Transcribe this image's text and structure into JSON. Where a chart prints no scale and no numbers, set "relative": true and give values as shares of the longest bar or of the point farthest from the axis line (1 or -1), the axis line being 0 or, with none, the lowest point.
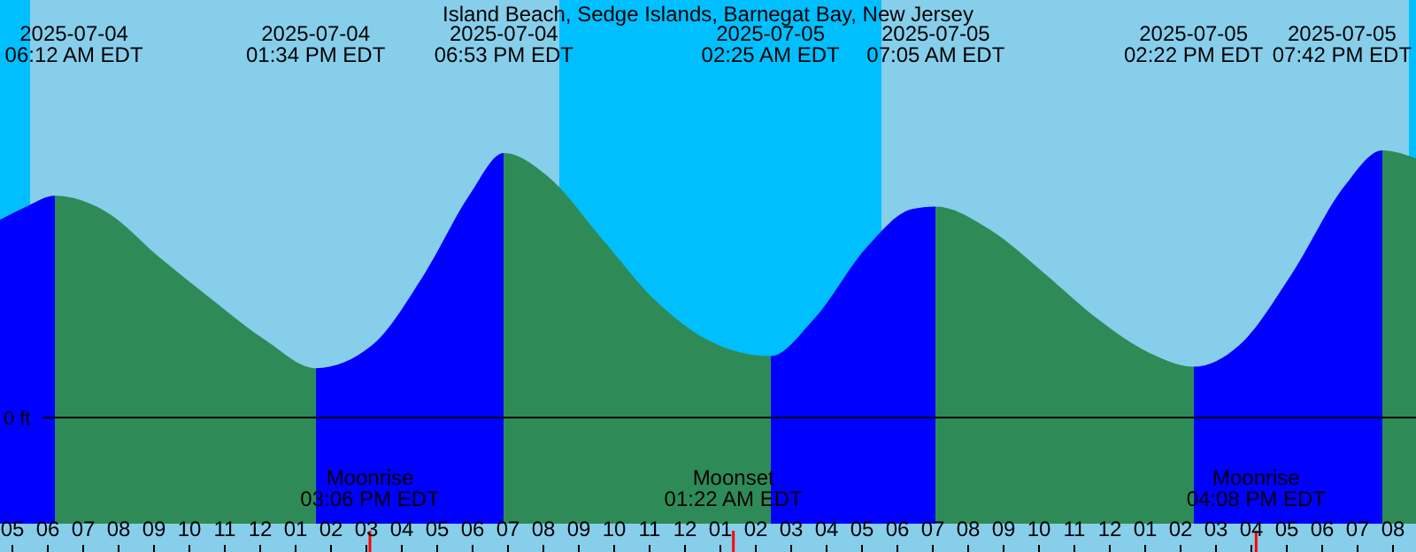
{
  "chart_data": {
    "type": "area",
    "title": "Island Beach, Sedge Islands, Barnegat Bay, New Jersey",
    "relative": true,
    "xlim": [
      "2025-07-04T04:39",
      "2025-07-05T20:39"
    ],
    "xticks": [
      {
        "value": "2025-07-04T05:00",
        "label": "05"
      },
      {
        "value": "2025-07-04T06:00",
        "label": "06"
      },
      {
        "value": "2025-07-04T07:00",
        "label": "07"
      },
      {
        "value": "2025-07-04T08:00",
        "label": "08"
      },
      {
        "value": "2025-07-04T09:00",
        "label": "09"
      },
      {
        "value": "2025-07-04T10:00",
        "label": "10"
      },
      {
        "value": "2025-07-04T11:00",
        "label": "11"
      },
      {
        "value": "2025-07-04T12:00",
        "label": "12"
      },
      {
        "value": "2025-07-04T13:00",
        "label": "01"
      },
      {
        "value": "2025-07-04T14:00",
        "label": "02"
      },
      {
        "value": "2025-07-04T15:00",
        "label": "03"
      },
      {
        "value": "2025-07-04T16:00",
        "label": "04"
      },
      {
        "value": "2025-07-04T17:00",
        "label": "05"
      },
      {
        "value": "2025-07-04T18:00",
        "label": "06"
      },
      {
        "value": "2025-07-04T19:00",
        "label": "07"
      },
      {
        "value": "2025-07-04T20:00",
        "label": "08"
      },
      {
        "value": "2025-07-04T21:00",
        "label": "09"
      },
      {
        "value": "2025-07-04T22:00",
        "label": "10"
      },
      {
        "value": "2025-07-04T23:00",
        "label": "11"
      },
      {
        "value": "2025-07-05T00:00",
        "label": "12"
      },
      {
        "value": "2025-07-05T01:00",
        "label": "01"
      },
      {
        "value": "2025-07-05T02:00",
        "label": "02"
      },
      {
        "value": "2025-07-05T03:00",
        "label": "03"
      },
      {
        "value": "2025-07-05T04:00",
        "label": "04"
      },
      {
        "value": "2025-07-05T05:00",
        "label": "05"
      },
      {
        "value": "2025-07-05T06:00",
        "label": "06"
      },
      {
        "value": "2025-07-05T07:00",
        "label": "07"
      },
      {
        "value": "2025-07-05T08:00",
        "label": "08"
      },
      {
        "value": "2025-07-05T09:00",
        "label": "09"
      },
      {
        "value": "2025-07-05T10:00",
        "label": "10"
      },
      {
        "value": "2025-07-05T11:00",
        "label": "11"
      },
      {
        "value": "2025-07-05T12:00",
        "label": "12"
      },
      {
        "value": "2025-07-05T13:00",
        "label": "01"
      },
      {
        "value": "2025-07-05T14:00",
        "label": "02"
      },
      {
        "value": "2025-07-05T15:00",
        "label": "03"
      },
      {
        "value": "2025-07-05T16:00",
        "label": "04"
      },
      {
        "value": "2025-07-05T17:00",
        "label": "05"
      },
      {
        "value": "2025-07-05T18:00",
        "label": "06"
      },
      {
        "value": "2025-07-05T19:00",
        "label": "07"
      },
      {
        "value": "2025-07-05T20:00",
        "label": "08"
      }
    ],
    "x": [
      "2025-07-04T04:39",
      "2025-07-04T05:24",
      "2025-07-04T06:12",
      "2025-07-04T07:39",
      "2025-07-04T09:09",
      "2025-07-04T10:39",
      "2025-07-04T12:09",
      "2025-07-04T13:34",
      "2025-07-04T15:09",
      "2025-07-04T16:39",
      "2025-07-04T17:54",
      "2025-07-04T18:53",
      "2025-07-04T20:09",
      "2025-07-04T21:39",
      "2025-07-04T23:09",
      "2025-07-05T00:39",
      "2025-07-05T02:25",
      "2025-07-05T03:39",
      "2025-07-05T05:09",
      "2025-07-05T06:24",
      "2025-07-05T07:05",
      "2025-07-05T08:39",
      "2025-07-05T10:09",
      "2025-07-05T11:39",
      "2025-07-05T13:09",
      "2025-07-05T14:22",
      "2025-07-05T15:39",
      "2025-07-05T17:09",
      "2025-07-05T18:39",
      "2025-07-05T19:42",
      "2025-07-05T20:39"
    ],
    "series": [
      {
        "color": "#2e8b57",
        "values": [
          0.74,
          0.79,
          0.83,
          0.77,
          0.6,
          0.44,
          0.29,
          0.185,
          0.27,
          0.54,
          0.83,
          0.99,
          0.9,
          0.67,
          0.44,
          0.29,
          0.23,
          0.37,
          0.64,
          0.78,
          0.79,
          0.7,
          0.54,
          0.37,
          0.24,
          0.19,
          0.27,
          0.54,
          0.87,
          1.0,
          0.97
        ]
      }
    ],
    "bands": [
      {
        "axis": "x",
        "from": "2025-07-04T04:39",
        "to": "2025-07-04T05:30",
        "color": "#00bfff"
      },
      {
        "axis": "x",
        "from": "2025-07-04T20:27",
        "to": "2025-07-05T05:33",
        "color": "#00bfff"
      },
      {
        "axis": "x",
        "from": "2025-07-05T20:27",
        "to": "2025-07-05T20:39",
        "color": "#00bfff"
      }
    ],
    "ref_lines": [
      {
        "axis": "y",
        "value": 0,
        "label": "0 ft",
        "color": "#000000"
      },
      {
        "axis": "x",
        "value": "2025-07-04T15:06",
        "label": "Moonrise\n03:06 PM EDT",
        "color": "#ff0000"
      },
      {
        "axis": "x",
        "value": "2025-07-05T01:22",
        "label": "Moonset\n01:22 AM EDT",
        "color": "#ff0000"
      },
      {
        "axis": "x",
        "value": "2025-07-05T16:08",
        "label": "Moonrise\n04:08 PM EDT",
        "color": "#ff0000"
      }
    ],
    "annotations": [
      "2025-07-04\n06:12 AM EDT",
      "2025-07-04\n01:34 PM EDT",
      "2025-07-04\n06:53 PM EDT",
      "2025-07-05\n02:25 AM EDT",
      "2025-07-05\n07:05 AM EDT",
      "2025-07-05\n02:22 PM EDT",
      "2025-07-05\n07:42 PM EDT"
    ]
  }
}
